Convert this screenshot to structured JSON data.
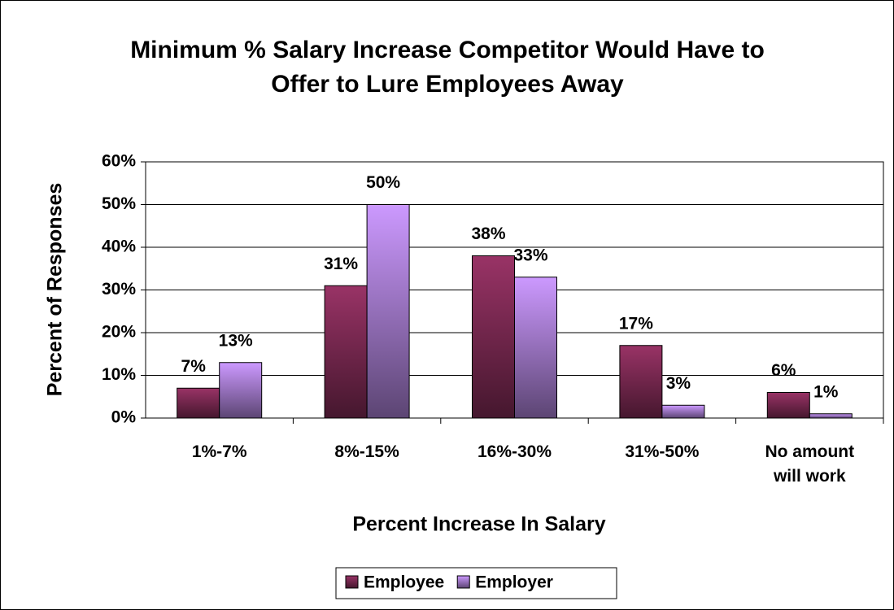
{
  "chart_data": {
    "type": "bar",
    "title": "Minimum % Salary Increase Competitor Would Have to Offer to Lure Employees Away",
    "x_label": "Percent Increase In Salary",
    "y_label": "Percent of Responses",
    "categories": [
      "1%-7%",
      "8%-15%",
      "16%-30%",
      "31%-50%",
      "No amount will work"
    ],
    "series": [
      {
        "name": "Employee",
        "color": "#993366",
        "values": [
          7,
          31,
          38,
          17,
          6
        ],
        "value_labels": [
          "7%",
          "31%",
          "38%",
          "17%",
          "6%"
        ]
      },
      {
        "name": "Employer",
        "color": "#cc99ff",
        "values": [
          13,
          50,
          33,
          3,
          1
        ],
        "value_labels": [
          "13%",
          "50%",
          "33%",
          "3%",
          "1%"
        ]
      }
    ],
    "ylim": [
      0,
      60
    ],
    "yticks": [
      {
        "value": 0,
        "label": "0%"
      },
      {
        "value": 10,
        "label": "10%"
      },
      {
        "value": 20,
        "label": "20%"
      },
      {
        "value": 30,
        "label": "30%"
      },
      {
        "value": 40,
        "label": "40%"
      },
      {
        "value": 50,
        "label": "50%"
      },
      {
        "value": 60,
        "label": "60%"
      }
    ],
    "grid": true,
    "legend": "bottom"
  }
}
